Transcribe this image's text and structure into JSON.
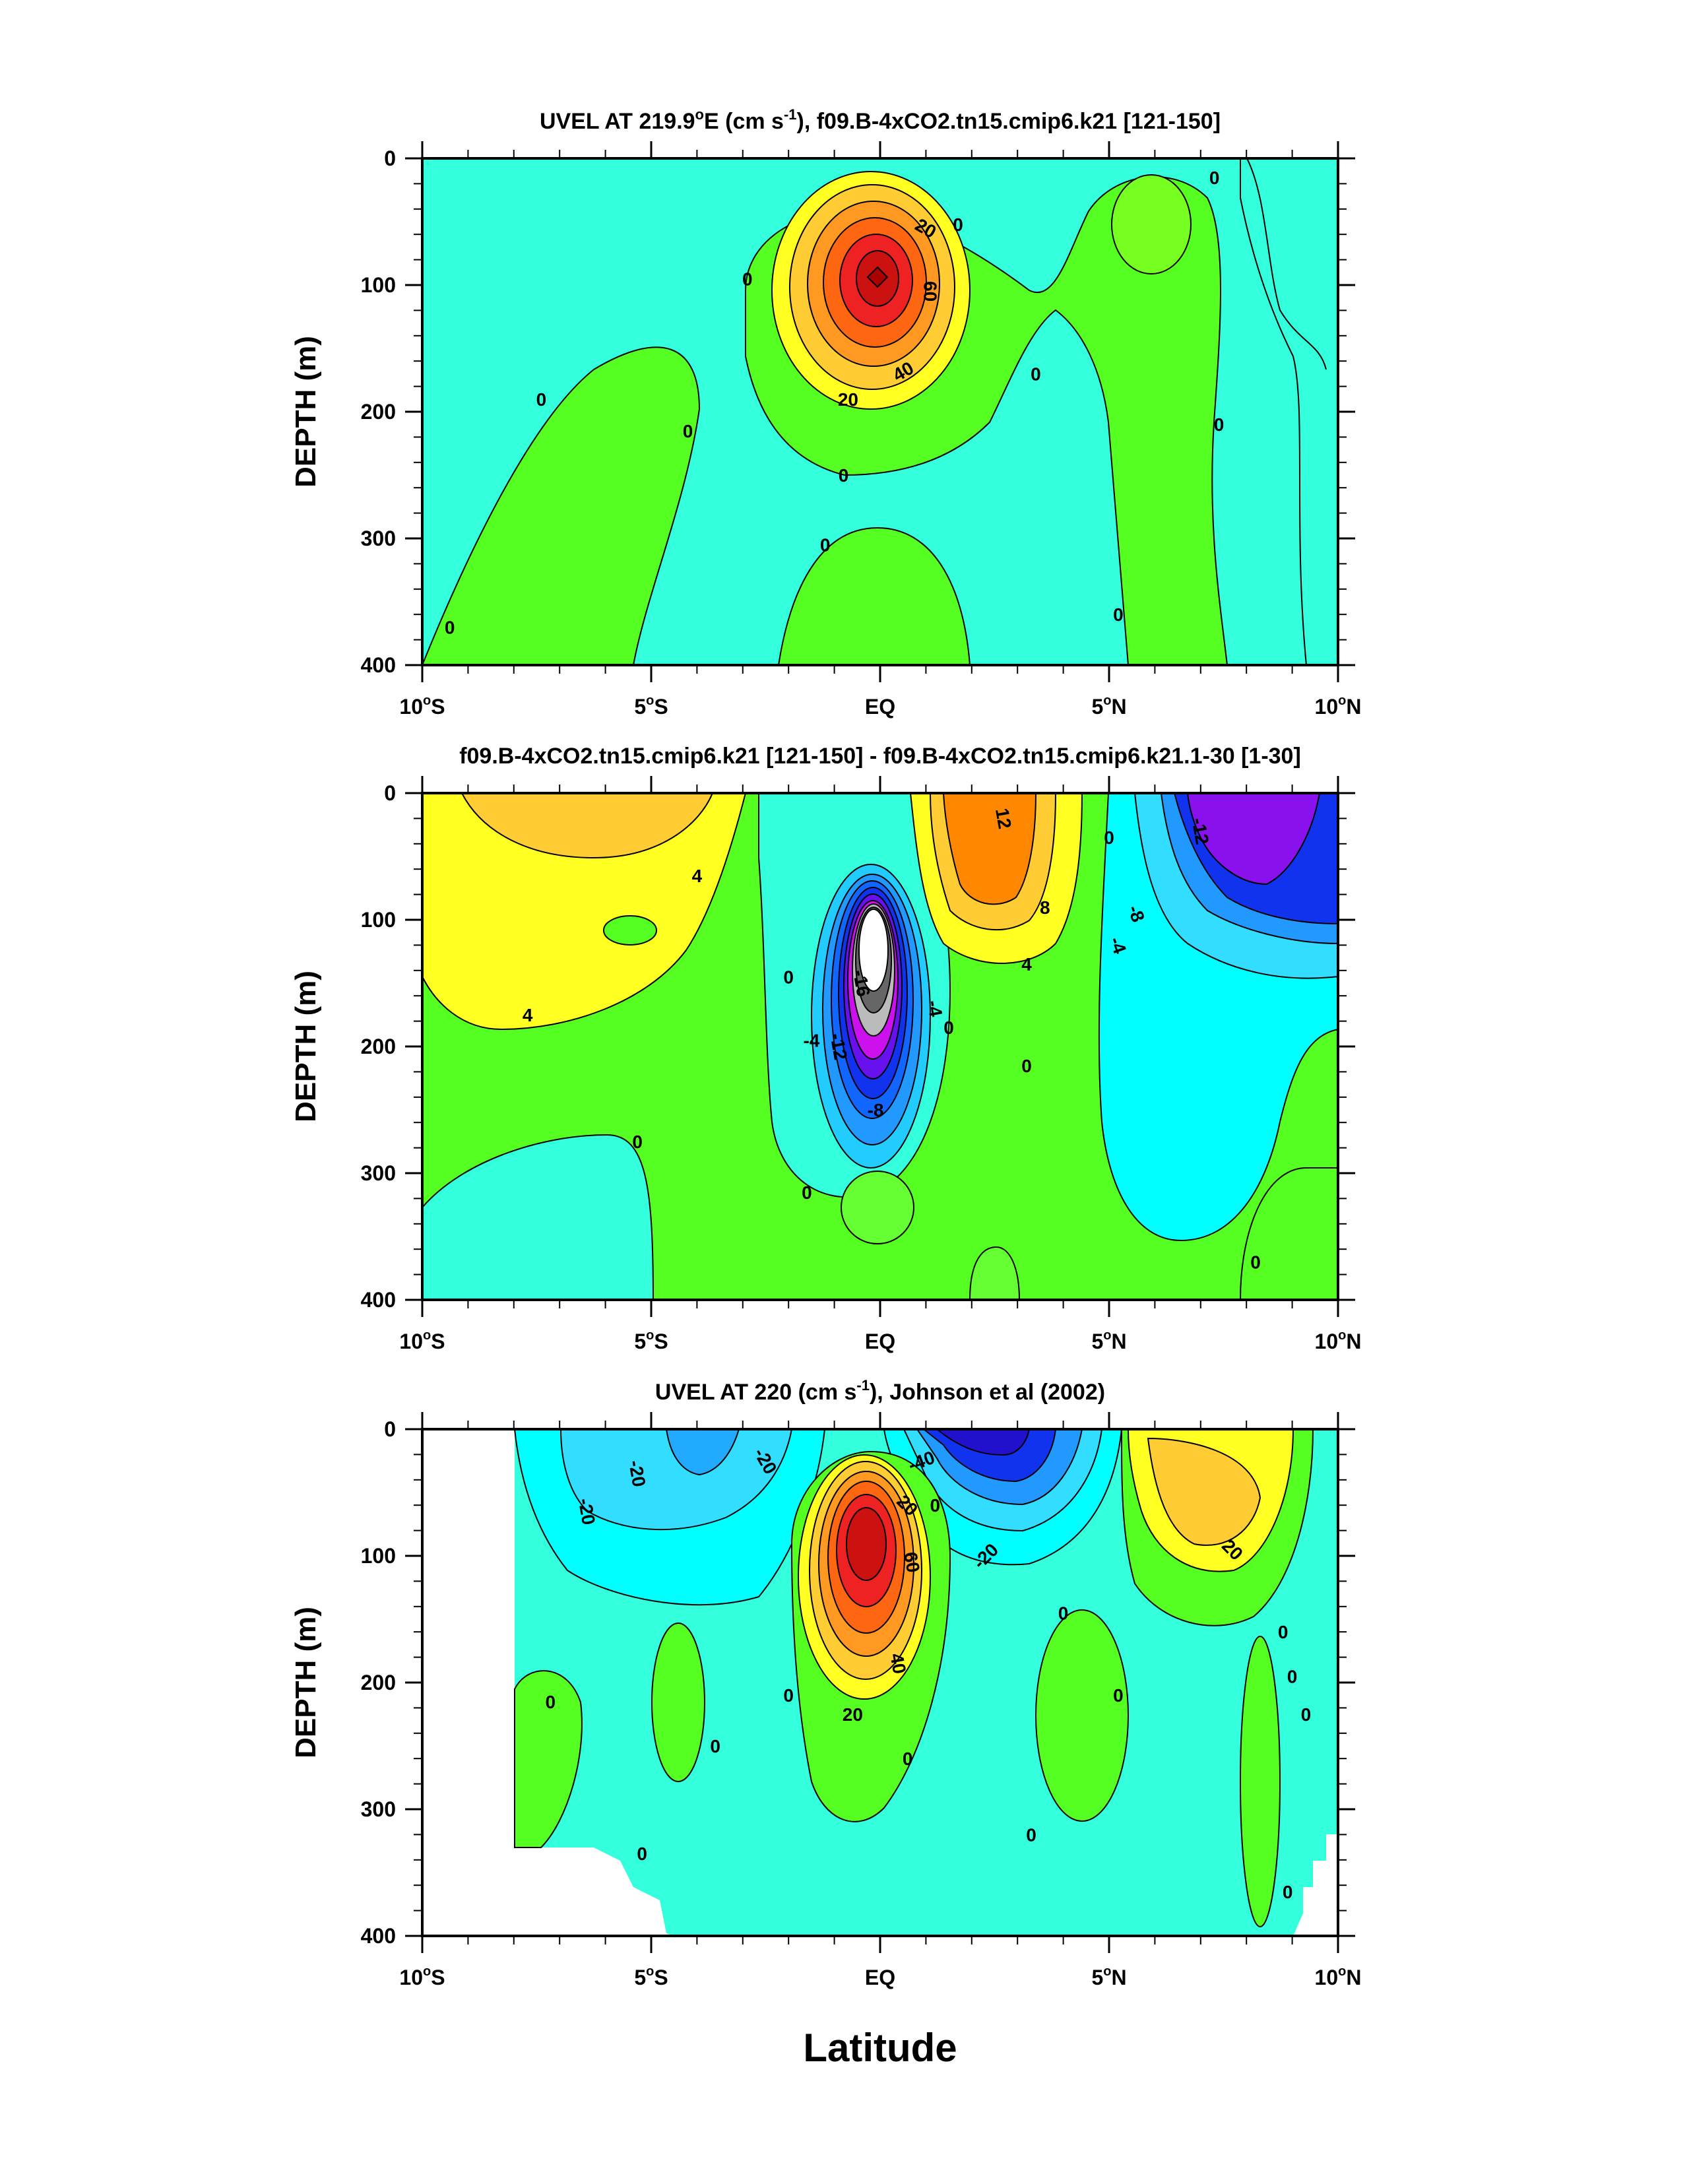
{
  "figure": {
    "xlabel": "Latitude"
  },
  "colors": {
    "cyan_light": "#33ffdd",
    "green": "#55ff22",
    "green_light": "#66ff44",
    "yellow": "#ffff22",
    "orange_yellow": "#ffcc33",
    "orange": "#ff8800",
    "red": "#ee1111",
    "dark_red": "#bb0000",
    "cyan": "#00ffff",
    "sky": "#33ddff",
    "blue_mid": "#2299ff",
    "blue": "#1133ee",
    "violet": "#8811ee",
    "magenta": "#ee22ee",
    "grey": "#999999",
    "dark_grey": "#555555",
    "white": "#ffffff"
  },
  "chart_data": [
    {
      "type": "heatmap",
      "title_pre": "UVEL AT 219.9",
      "title_deg": "o",
      "title_mid": "E (cm s",
      "title_sup": "-1",
      "title_post": "), f09.B-4xCO2.tn15.cmip6.k21 [121-150]",
      "ylabel": "DEPTH (m)",
      "xlim": [
        -10,
        10
      ],
      "ylim": [
        400,
        0
      ],
      "x_ticks": [
        "10°S",
        "5°S",
        "EQ",
        "5°N",
        "10°N"
      ],
      "y_ticks": [
        "0",
        "100",
        "200",
        "300",
        "400"
      ],
      "contour_labels": [
        {
          "text": "20",
          "x": 1.0,
          "y": 55,
          "rot": 30
        },
        {
          "text": "60",
          "x": 1.1,
          "y": 105,
          "rot": 90
        },
        {
          "text": "40",
          "x": 0.5,
          "y": 168,
          "rot": -30
        },
        {
          "text": "20",
          "x": -0.7,
          "y": 190,
          "rot": 0
        },
        {
          "text": "0",
          "x": -2.9,
          "y": 95,
          "rot": 0
        },
        {
          "text": "0",
          "x": 1.7,
          "y": 52,
          "rot": 0
        },
        {
          "text": "0",
          "x": 3.4,
          "y": 170,
          "rot": 0
        },
        {
          "text": "0",
          "x": -7.4,
          "y": 190,
          "rot": 0
        },
        {
          "text": "0",
          "x": -4.2,
          "y": 215,
          "rot": 0
        },
        {
          "text": "0",
          "x": -0.8,
          "y": 250,
          "rot": 0
        },
        {
          "text": "0",
          "x": -1.2,
          "y": 305,
          "rot": 0
        },
        {
          "text": "0",
          "x": 5.2,
          "y": 360,
          "rot": 0
        },
        {
          "text": "0",
          "x": 7.3,
          "y": 15,
          "rot": 0
        },
        {
          "text": "0",
          "x": 7.4,
          "y": 210,
          "rot": 0
        },
        {
          "text": "0",
          "x": -9.4,
          "y": 370,
          "rot": 0
        }
      ]
    },
    {
      "type": "heatmap",
      "title": "f09.B-4xCO2.tn15.cmip6.k21 [121-150] - f09.B-4xCO2.tn15.cmip6.k21.1-30 [1-30]",
      "ylabel": "DEPTH (m)",
      "xlim": [
        -10,
        10
      ],
      "ylim": [
        400,
        0
      ],
      "x_ticks": [
        "10°S",
        "5°S",
        "EQ",
        "5°N",
        "10°N"
      ],
      "y_ticks": [
        "0",
        "100",
        "200",
        "300",
        "400"
      ],
      "contour_labels": [
        {
          "text": "12",
          "x": 2.7,
          "y": 20,
          "rot": 80
        },
        {
          "text": "8",
          "x": 3.6,
          "y": 90,
          "rot": 0
        },
        {
          "text": "4",
          "x": 3.2,
          "y": 135,
          "rot": 0
        },
        {
          "text": "4",
          "x": -4.0,
          "y": 65,
          "rot": 0
        },
        {
          "text": "4",
          "x": -7.7,
          "y": 175,
          "rot": 0
        },
        {
          "text": "-16",
          "x": -0.4,
          "y": 150,
          "rot": 80
        },
        {
          "text": "-12",
          "x": -0.9,
          "y": 200,
          "rot": 80
        },
        {
          "text": "-4",
          "x": -1.5,
          "y": 195,
          "rot": 0
        },
        {
          "text": "-4",
          "x": 1.2,
          "y": 170,
          "rot": 80
        },
        {
          "text": "-8",
          "x": -0.1,
          "y": 250,
          "rot": 0
        },
        {
          "text": "0",
          "x": -2.0,
          "y": 145,
          "rot": 0
        },
        {
          "text": "0",
          "x": 1.5,
          "y": 185,
          "rot": 0
        },
        {
          "text": "0",
          "x": 3.2,
          "y": 215,
          "rot": 0
        },
        {
          "text": "0",
          "x": -5.3,
          "y": 275,
          "rot": 0
        },
        {
          "text": "0",
          "x": -1.6,
          "y": 315,
          "rot": 0
        },
        {
          "text": "0",
          "x": 5.0,
          "y": 35,
          "rot": 0
        },
        {
          "text": "-12",
          "x": 7.0,
          "y": 30,
          "rot": 80
        },
        {
          "text": "-8",
          "x": 5.6,
          "y": 95,
          "rot": 70
        },
        {
          "text": "-4",
          "x": 5.2,
          "y": 120,
          "rot": 70
        },
        {
          "text": "0",
          "x": 8.2,
          "y": 370,
          "rot": 0
        }
      ]
    },
    {
      "type": "heatmap",
      "title_pre": "UVEL AT 220 (cm s",
      "title_sup": "-1",
      "title_post": "), Johnson et al (2002)",
      "ylabel": "DEPTH (m)",
      "xlim": [
        -10,
        10
      ],
      "ylim": [
        400,
        0
      ],
      "x_ticks": [
        "10°S",
        "5°S",
        "EQ",
        "5°N",
        "10°N"
      ],
      "y_ticks": [
        "0",
        "100",
        "200",
        "300",
        "400"
      ],
      "contour_labels": [
        {
          "text": "-20",
          "x": -5.3,
          "y": 35,
          "rot": 80
        },
        {
          "text": "-20",
          "x": -6.4,
          "y": 65,
          "rot": 80
        },
        {
          "text": "-20",
          "x": -2.5,
          "y": 25,
          "rot": 60
        },
        {
          "text": "-40",
          "x": 0.9,
          "y": 25,
          "rot": -20
        },
        {
          "text": "-20",
          "x": 2.3,
          "y": 100,
          "rot": -45
        },
        {
          "text": "20",
          "x": 0.6,
          "y": 60,
          "rot": 45
        },
        {
          "text": "60",
          "x": 0.7,
          "y": 105,
          "rot": 80
        },
        {
          "text": "40",
          "x": 0.4,
          "y": 185,
          "rot": 80
        },
        {
          "text": "20",
          "x": -0.6,
          "y": 225,
          "rot": 0
        },
        {
          "text": "0",
          "x": 1.2,
          "y": 60,
          "rot": 0
        },
        {
          "text": "0",
          "x": 4.0,
          "y": 145,
          "rot": 0
        },
        {
          "text": "0",
          "x": -2.0,
          "y": 210,
          "rot": 0
        },
        {
          "text": "0",
          "x": 0.6,
          "y": 260,
          "rot": 0
        },
        {
          "text": "0",
          "x": -3.6,
          "y": 250,
          "rot": 0
        },
        {
          "text": "0",
          "x": -7.2,
          "y": 215,
          "rot": 0
        },
        {
          "text": "0",
          "x": 5.2,
          "y": 210,
          "rot": 0
        },
        {
          "text": "0",
          "x": 3.3,
          "y": 320,
          "rot": 0
        },
        {
          "text": "0",
          "x": -5.2,
          "y": 335,
          "rot": 0
        },
        {
          "text": "20",
          "x": 7.7,
          "y": 95,
          "rot": 45
        },
        {
          "text": "0",
          "x": 8.8,
          "y": 160,
          "rot": 0
        },
        {
          "text": "0",
          "x": 9.0,
          "y": 195,
          "rot": 0
        },
        {
          "text": "0",
          "x": 9.3,
          "y": 225,
          "rot": 0
        },
        {
          "text": "0",
          "x": 8.9,
          "y": 365,
          "rot": 0
        }
      ]
    }
  ]
}
